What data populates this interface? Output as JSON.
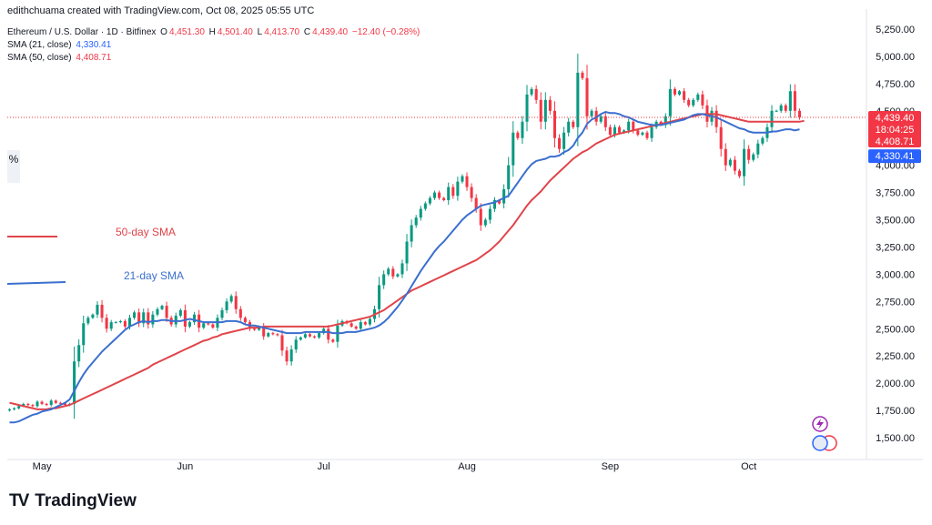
{
  "header": {
    "byline": "edithchuama created with TradingView.com, Oct 08, 2025 05:55 UTC"
  },
  "legend": {
    "symbol": "Ethereum / U.S. Dollar · 1D · Bitfinex",
    "open_label": "O",
    "open": "4,451.30",
    "high_label": "H",
    "high": "4,501.40",
    "low_label": "L",
    "low": "4,413.70",
    "close_label": "C",
    "close": "4,439.40",
    "change": "−12.40 (−0.28%)",
    "sma21_label": "SMA (21, close)",
    "sma21_value": "4,330.41",
    "sma50_label": "SMA (50, close)",
    "sma50_value": "4,408.71"
  },
  "annotations": {
    "sma50": "50-day SMA",
    "sma21": "21-day SMA"
  },
  "side_button": "%",
  "brand": {
    "logo": "TV",
    "name": "TradingView"
  },
  "colors": {
    "up": "#089981",
    "down": "#f23645",
    "sma50": "#e0444a",
    "sma21": "#3b6fcf",
    "last_price_bg": "#f23645",
    "sma21_bg": "#2962ff"
  },
  "price_labels": {
    "last": "4,439.40",
    "countdown": "18:04:25",
    "sma50": "4,408.71",
    "sma21": "4,330.41"
  },
  "chart_data": {
    "type": "candlestick",
    "title": "Ethereum / U.S. Dollar · 1D · Bitfinex",
    "y_ticks": [
      1500,
      1750,
      2000,
      2250,
      2500,
      2750,
      3000,
      3250,
      3500,
      3750,
      4000,
      4250,
      4500,
      4750,
      5000,
      5250
    ],
    "y_tick_labels": [
      "1,500.00",
      "1,750.00",
      "2,000.00",
      "2,250.00",
      "2,500.00",
      "2,750.00",
      "3,000.00",
      "3,250.00",
      "3,500.00",
      "3,750.00",
      "4,000.00",
      "4,250.00",
      "4,500.00",
      "4,750.00",
      "5,000.00",
      "5,250.00"
    ],
    "ylim": [
      1300,
      5350
    ],
    "x_labels": [
      {
        "label": "May",
        "index": 7
      },
      {
        "label": "Jun",
        "index": 38
      },
      {
        "label": "Jul",
        "index": 68
      },
      {
        "label": "Aug",
        "index": 99
      },
      {
        "label": "Sep",
        "index": 130
      },
      {
        "label": "Oct",
        "index": 160
      }
    ],
    "x_domain": [
      0,
      185
    ],
    "start_date": "2025-04-24",
    "closes": [
      1760,
      1770,
      1790,
      1810,
      1800,
      1790,
      1830,
      1810,
      1800,
      1840,
      1820,
      1815,
      1800,
      1810,
      2200,
      2350,
      2550,
      2600,
      2630,
      2720,
      2600,
      2500,
      2560,
      2560,
      2570,
      2520,
      2600,
      2650,
      2550,
      2650,
      2540,
      2630,
      2680,
      2710,
      2600,
      2540,
      2620,
      2670,
      2520,
      2560,
      2630,
      2510,
      2550,
      2540,
      2510,
      2600,
      2670,
      2750,
      2800,
      2680,
      2600,
      2560,
      2500,
      2490,
      2520,
      2430,
      2460,
      2450,
      2440,
      2300,
      2200,
      2310,
      2400,
      2420,
      2450,
      2430,
      2420,
      2460,
      2500,
      2400,
      2380,
      2530,
      2570,
      2550,
      2520,
      2500,
      2560,
      2540,
      2590,
      2680,
      2900,
      3000,
      3050,
      2980,
      3000,
      3100,
      3300,
      3450,
      3520,
      3600,
      3650,
      3700,
      3750,
      3700,
      3680,
      3800,
      3720,
      3850,
      3900,
      3800,
      3700,
      3600,
      3450,
      3500,
      3600,
      3680,
      3650,
      3780,
      4000,
      4300,
      4250,
      4400,
      4650,
      4700,
      4600,
      4400,
      4600,
      4500,
      4250,
      4150,
      4300,
      4400,
      4350,
      4850,
      4800,
      4450,
      4500,
      4400,
      4450,
      4350,
      4280,
      4350,
      4300,
      4320,
      4400,
      4320,
      4280,
      4300,
      4250,
      4350,
      4400,
      4370,
      4450,
      4700,
      4650,
      4680,
      4600,
      4550,
      4600,
      4650,
      4550,
      4400,
      4500,
      4350,
      4150,
      4000,
      4050,
      3950,
      3900,
      4150,
      4050,
      4100,
      4200,
      4250,
      4350,
      4500,
      4500,
      4550,
      4500,
      4680,
      4500,
      4439
    ],
    "sma21": [
      1640,
      1640,
      1650,
      1670,
      1690,
      1710,
      1720,
      1740,
      1750,
      1760,
      1780,
      1800,
      1820,
      1850,
      1930,
      2010,
      2080,
      2140,
      2190,
      2240,
      2290,
      2330,
      2370,
      2410,
      2450,
      2490,
      2520,
      2540,
      2560,
      2570,
      2560,
      2570,
      2570,
      2580,
      2580,
      2570,
      2570,
      2570,
      2580,
      2590,
      2580,
      2570,
      2560,
      2560,
      2560,
      2560,
      2560,
      2570,
      2570,
      2570,
      2560,
      2540,
      2530,
      2530,
      2520,
      2510,
      2500,
      2490,
      2480,
      2470,
      2460,
      2460,
      2460,
      2460,
      2470,
      2470,
      2470,
      2470,
      2470,
      2470,
      2460,
      2460,
      2460,
      2470,
      2470,
      2470,
      2480,
      2490,
      2500,
      2510,
      2530,
      2560,
      2600,
      2650,
      2700,
      2760,
      2820,
      2890,
      2960,
      3030,
      3090,
      3150,
      3210,
      3260,
      3300,
      3350,
      3400,
      3450,
      3500,
      3540,
      3570,
      3600,
      3630,
      3640,
      3650,
      3660,
      3680,
      3700,
      3720,
      3780,
      3840,
      3900,
      3960,
      4010,
      4040,
      4050,
      4060,
      4080,
      4080,
      4090,
      4120,
      4140,
      4180,
      4250,
      4300,
      4380,
      4420,
      4440,
      4470,
      4490,
      4480,
      4480,
      4470,
      4450,
      4440,
      4420,
      4400,
      4390,
      4380,
      4370,
      4370,
      4370,
      4380,
      4390,
      4400,
      4410,
      4420,
      4440,
      4460,
      4470,
      4470,
      4460,
      4450,
      4440,
      4420,
      4400,
      4380,
      4360,
      4340,
      4330,
      4310,
      4300,
      4300,
      4300,
      4300,
      4310,
      4310,
      4320,
      4330,
      4330,
      4320,
      4330
    ],
    "sma50": [
      1820,
      1810,
      1800,
      1790,
      1780,
      1770,
      1760,
      1760,
      1760,
      1770,
      1770,
      1780,
      1790,
      1800,
      1820,
      1840,
      1860,
      1880,
      1900,
      1920,
      1940,
      1960,
      1980,
      2000,
      2020,
      2040,
      2060,
      2080,
      2100,
      2120,
      2140,
      2170,
      2190,
      2210,
      2230,
      2250,
      2270,
      2290,
      2310,
      2330,
      2350,
      2370,
      2390,
      2400,
      2420,
      2430,
      2450,
      2460,
      2470,
      2480,
      2490,
      2500,
      2510,
      2510,
      2510,
      2520,
      2520,
      2520,
      2520,
      2520,
      2520,
      2520,
      2520,
      2520,
      2520,
      2520,
      2520,
      2520,
      2520,
      2520,
      2530,
      2540,
      2550,
      2560,
      2570,
      2580,
      2590,
      2600,
      2610,
      2630,
      2650,
      2670,
      2700,
      2730,
      2760,
      2790,
      2820,
      2850,
      2870,
      2890,
      2910,
      2930,
      2950,
      2970,
      2990,
      3010,
      3030,
      3050,
      3070,
      3090,
      3110,
      3130,
      3160,
      3190,
      3220,
      3260,
      3300,
      3350,
      3400,
      3450,
      3510,
      3570,
      3630,
      3680,
      3720,
      3760,
      3810,
      3860,
      3900,
      3940,
      3980,
      4020,
      4060,
      4090,
      4120,
      4140,
      4170,
      4200,
      4220,
      4240,
      4260,
      4280,
      4290,
      4300,
      4310,
      4320,
      4330,
      4340,
      4350,
      4360,
      4370,
      4380,
      4390,
      4400,
      4410,
      4420,
      4430,
      4440,
      4450,
      4460,
      4470,
      4470,
      4470,
      4470,
      4460,
      4450,
      4440,
      4430,
      4420,
      4410,
      4400,
      4400,
      4400,
      4400,
      4400,
      4400,
      4400,
      4400,
      4400,
      4400,
      4400,
      4400,
      4408
    ],
    "last_price": 4439.4
  }
}
